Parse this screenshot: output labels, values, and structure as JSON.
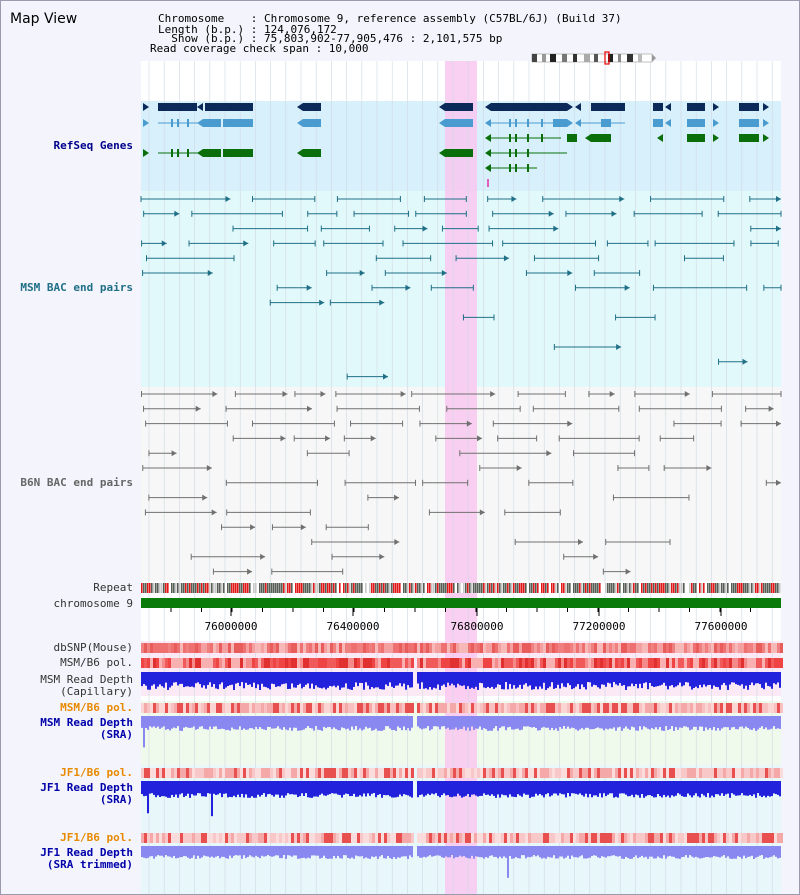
{
  "view": {
    "title": "Map View",
    "info_lines": [
      "Chromosome    : Chromosome 9, reference assembly (C57BL/6J) (Build 37)",
      "Length (b.p.) : 124,076,172",
      "  Show (b.p.) : 75,803,902-77,905,476 : 2,101,575 bp",
      "Read coverage check span : 10,000"
    ]
  },
  "tracks": {
    "refseq": "RefSeq Genes",
    "msm_bac": "MSM BAC end pairs",
    "b6n_bac": "B6N BAC end pairs",
    "repeat": "Repeat",
    "chromosome": "chromosome 9",
    "dbsnp": "dbSNP(Mouse)",
    "msm_b6_pol_1": "MSM/B6 pol.",
    "msm_depth_cap_1": "MSM Read Depth",
    "msm_depth_cap_2": "(Capillary)",
    "msm_b6_pol_2": "MSM/B6 pol.",
    "msm_depth_sra_1": "MSM Read Depth",
    "msm_depth_sra_2": "(SRA)",
    "jf1_b6_pol_1": "JF1/B6 pol.",
    "jf1_depth_sra_1": "JF1 Read Depth",
    "jf1_depth_sra_2": "(SRA)",
    "jf1_b6_pol_2": "JF1/B6 pol.",
    "jf1_depth_trim_1": "JF1 Read Depth",
    "jf1_depth_trim_2": "(SRA trimmed)"
  },
  "axis": {
    "ticks": [
      "76000000",
      "76400000",
      "76800000",
      "77200000",
      "77600000"
    ]
  },
  "colors": {
    "refseq_dark": "#0b2a5a",
    "refseq_light": "#4a9bd0",
    "refseq_green": "#0a6f0a",
    "msm_bac": "#1f6f86",
    "b6n_bac": "#707070",
    "highlight": "#f9c8f0",
    "chromosome": "#0a7a0a",
    "depth_dark": "#2222dd",
    "depth_light": "#8888f0"
  }
}
